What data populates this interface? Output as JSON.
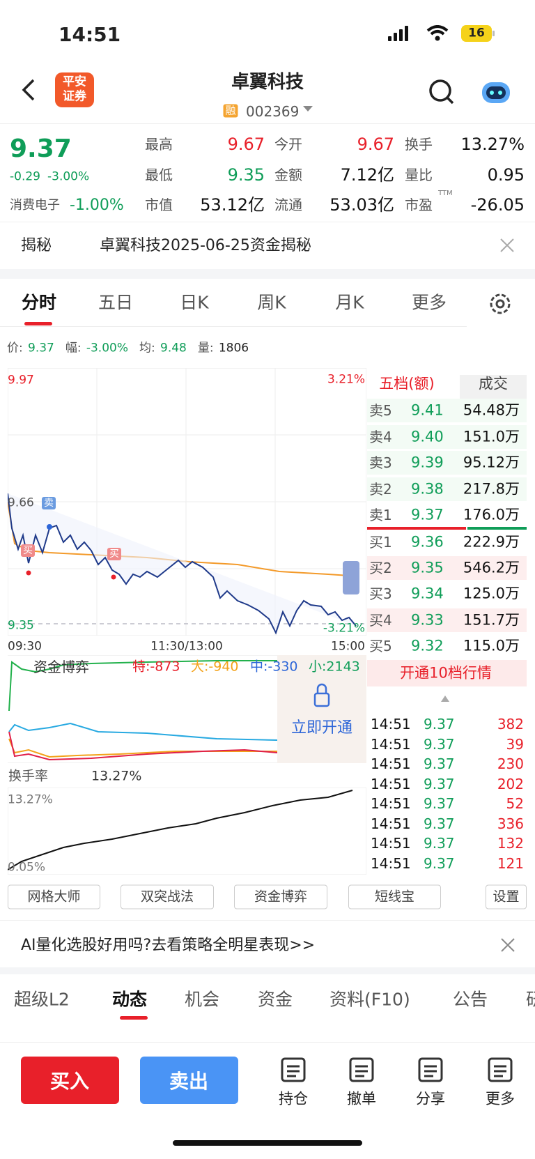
{
  "status": {
    "time": "14:51",
    "battery": "16"
  },
  "header": {
    "logo": [
      "平安",
      "证券"
    ],
    "title": "卓翼科技",
    "badge": "融",
    "code": "002369"
  },
  "quote": {
    "price": "9.37",
    "change": "-0.29",
    "change_pct": "-3.00%",
    "sector": "消费电子",
    "sector_pct": "-1.00%",
    "stats": [
      [
        {
          "label": "最高",
          "value": "9.67"
        },
        {
          "label": "今开",
          "value": "9.67"
        },
        {
          "label": "换手",
          "value": "13.27%"
        }
      ],
      [
        {
          "label": "最低",
          "value": "9.35"
        },
        {
          "label": "金额",
          "value": "7.12亿"
        },
        {
          "label": "量比",
          "value": "0.95"
        }
      ],
      [
        {
          "label": "市值",
          "value": "53.12亿"
        },
        {
          "label": "流通",
          "value": "53.03亿"
        },
        {
          "label": "市盈",
          "sup": "TTM",
          "value": "-26.05"
        }
      ]
    ]
  },
  "notice": {
    "tag": "揭秘",
    "text": "卓翼科技2025-06-25资金揭秘"
  },
  "tabs": [
    "分时",
    "五日",
    "日K",
    "周K",
    "月K",
    "更多"
  ],
  "info": [
    {
      "label": "价:",
      "value": "9.37"
    },
    {
      "label": "幅:",
      "value": "-3.00%"
    },
    {
      "label": "均:",
      "value": "9.48"
    },
    {
      "label": "量:",
      "value": "1806"
    }
  ],
  "chart": {
    "top_left": "9.97",
    "top_right": "3.21%",
    "mid_left": "9.66",
    "bottom_left": "9.35",
    "bottom_right": "-3.21%",
    "x_labels": [
      "09:30",
      "11:30/13:00",
      "15:00"
    ],
    "markers": [
      "卖",
      "买",
      "买"
    ]
  },
  "order_book": {
    "tabs": [
      "五档(额)",
      "成交"
    ],
    "asks": [
      {
        "label": "卖5",
        "price": "9.41",
        "amount": "54.48万"
      },
      {
        "label": "卖4",
        "price": "9.40",
        "amount": "151.0万"
      },
      {
        "label": "卖3",
        "price": "9.39",
        "amount": "95.12万"
      },
      {
        "label": "卖2",
        "price": "9.38",
        "amount": "217.8万"
      },
      {
        "label": "卖1",
        "price": "9.37",
        "amount": "176.0万"
      }
    ],
    "bids": [
      {
        "label": "买1",
        "price": "9.36",
        "amount": "222.9万"
      },
      {
        "label": "买2",
        "price": "9.35",
        "amount": "546.2万"
      },
      {
        "label": "买3",
        "price": "9.34",
        "amount": "125.0万"
      },
      {
        "label": "买4",
        "price": "9.33",
        "amount": "151.7万"
      },
      {
        "label": "买5",
        "price": "9.32",
        "amount": "115.0万"
      }
    ],
    "button": "开通10档行情"
  },
  "trades": [
    [
      "14:51",
      "9.37",
      "382"
    ],
    [
      "14:51",
      "9.37",
      "39"
    ],
    [
      "14:51",
      "9.37",
      "230"
    ],
    [
      "14:51",
      "9.37",
      "202"
    ],
    [
      "14:51",
      "9.37",
      "52"
    ],
    [
      "14:51",
      "9.37",
      "336"
    ],
    [
      "14:51",
      "9.37",
      "132"
    ],
    [
      "14:51",
      "9.37",
      "121"
    ]
  ],
  "fund": {
    "title": "资金博弈",
    "items": [
      "特:-873",
      "大:-940",
      "中:-330",
      "小:2143"
    ],
    "unlock": "立即开通"
  },
  "turnover": {
    "title": "换手率",
    "value": "13.27%",
    "top": "13.27%",
    "bottom": "0.05%"
  },
  "tools": [
    "网格大师",
    "双突战法",
    "资金博弈",
    "短线宝",
    "设置"
  ],
  "ad": "AI量化选股好用吗?去看策略全明星表现>>",
  "bottom_tabs": [
    "超级L2",
    "动态",
    "机会",
    "资金",
    "资料(F10)",
    "公告",
    "研"
  ],
  "actions": {
    "buy": "买入",
    "sell": "卖出",
    "icons": [
      "持仓",
      "撤单",
      "分享",
      "更多"
    ]
  }
}
